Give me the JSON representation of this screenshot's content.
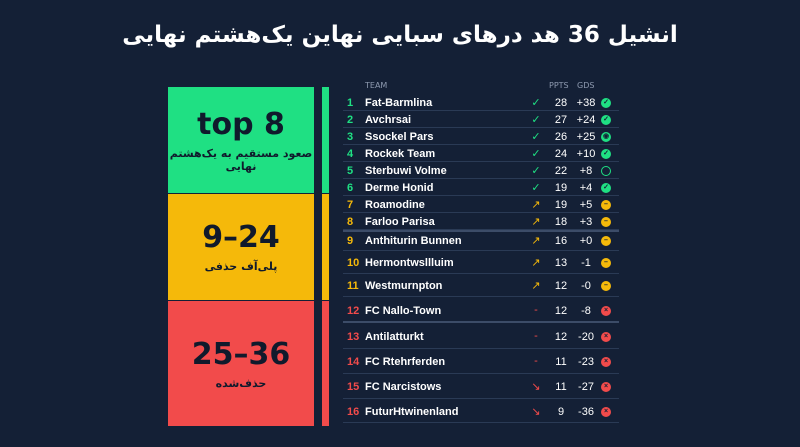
{
  "title": "انشیل 36 هد درهای سبایی نهاین یک‌هشتم نهایی",
  "zones": [
    {
      "big": "top 8",
      "small": "صعود مستقیم به یک‌هشتم نهایی",
      "color": "#1fe083"
    },
    {
      "big": "9–24",
      "small": "پلی‌آف حذفی",
      "color": "#f5b90a"
    },
    {
      "big": "25–36",
      "small": "حذف‌شده",
      "color": "#f24b4b"
    }
  ],
  "table": {
    "headers": {
      "team": "TEAM",
      "pts": "PPTS",
      "gd": "GDS"
    },
    "rows": [
      {
        "rank": "1",
        "team": "Fat-Barmlina",
        "trend": "✓",
        "pts": "28",
        "gd": "+38",
        "status": "✓",
        "zone": "g"
      },
      {
        "rank": "2",
        "team": "Avchrsai",
        "trend": "✓",
        "pts": "27",
        "gd": "+24",
        "status": "✓",
        "zone": "g"
      },
      {
        "rank": "3",
        "team": "Ssockel Pars",
        "trend": "✓",
        "pts": "26",
        "gd": "+25",
        "status": "◉",
        "zone": "g"
      },
      {
        "rank": "4",
        "team": "Rockek Team",
        "trend": "✓",
        "pts": "24",
        "gd": "+10",
        "status": "✓",
        "zone": "g"
      },
      {
        "rank": "5",
        "team": "Sterbuwi Volme",
        "trend": "✓",
        "pts": "22",
        "gd": "+8",
        "status": "",
        "zone": "g"
      },
      {
        "rank": "6",
        "team": "Derme Honid",
        "trend": "✓",
        "pts": "19",
        "gd": "+4",
        "status": "✓",
        "zone": "g"
      },
      {
        "rank": "7",
        "team": "Roamodine",
        "trend": "↗",
        "pts": "19",
        "gd": "+5",
        "status": "–",
        "zone": "y"
      },
      {
        "rank": "8",
        "team": "Farloo Parisa",
        "trend": "↗",
        "pts": "18",
        "gd": "+3",
        "status": "–",
        "zone": "y"
      },
      {
        "rank": "9",
        "team": "Anthiturin Bunnen",
        "trend": "↗",
        "pts": "16",
        "gd": "+0",
        "status": "–",
        "zone": "y"
      },
      {
        "rank": "10",
        "team": "Hermontwsllluim",
        "trend": "↗",
        "pts": "13",
        "gd": "-1",
        "status": "–",
        "zone": "y"
      },
      {
        "rank": "11",
        "team": "Westmurnpton",
        "trend": "↗",
        "pts": "12",
        "gd": "-0",
        "status": "–",
        "zone": "y"
      },
      {
        "rank": "12",
        "team": "FC Nallo-Town",
        "trend": "-",
        "pts": "12",
        "gd": "-8",
        "status": "×",
        "zone": "r"
      },
      {
        "rank": "13",
        "team": "Antilatturkt",
        "trend": "-",
        "pts": "12",
        "gd": "-20",
        "status": "×",
        "zone": "r"
      },
      {
        "rank": "14",
        "team": "FC Rtehrferden",
        "trend": "-",
        "pts": "11",
        "gd": "-23",
        "status": "×",
        "zone": "r"
      },
      {
        "rank": "15",
        "team": "FC Narcistows",
        "trend": "↘",
        "pts": "11",
        "gd": "-27",
        "status": "×",
        "zone": "r"
      },
      {
        "rank": "16",
        "team": "FuturHtwinenland",
        "trend": "↘",
        "pts": "9",
        "gd": "-36",
        "status": "×",
        "zone": "r"
      }
    ]
  }
}
